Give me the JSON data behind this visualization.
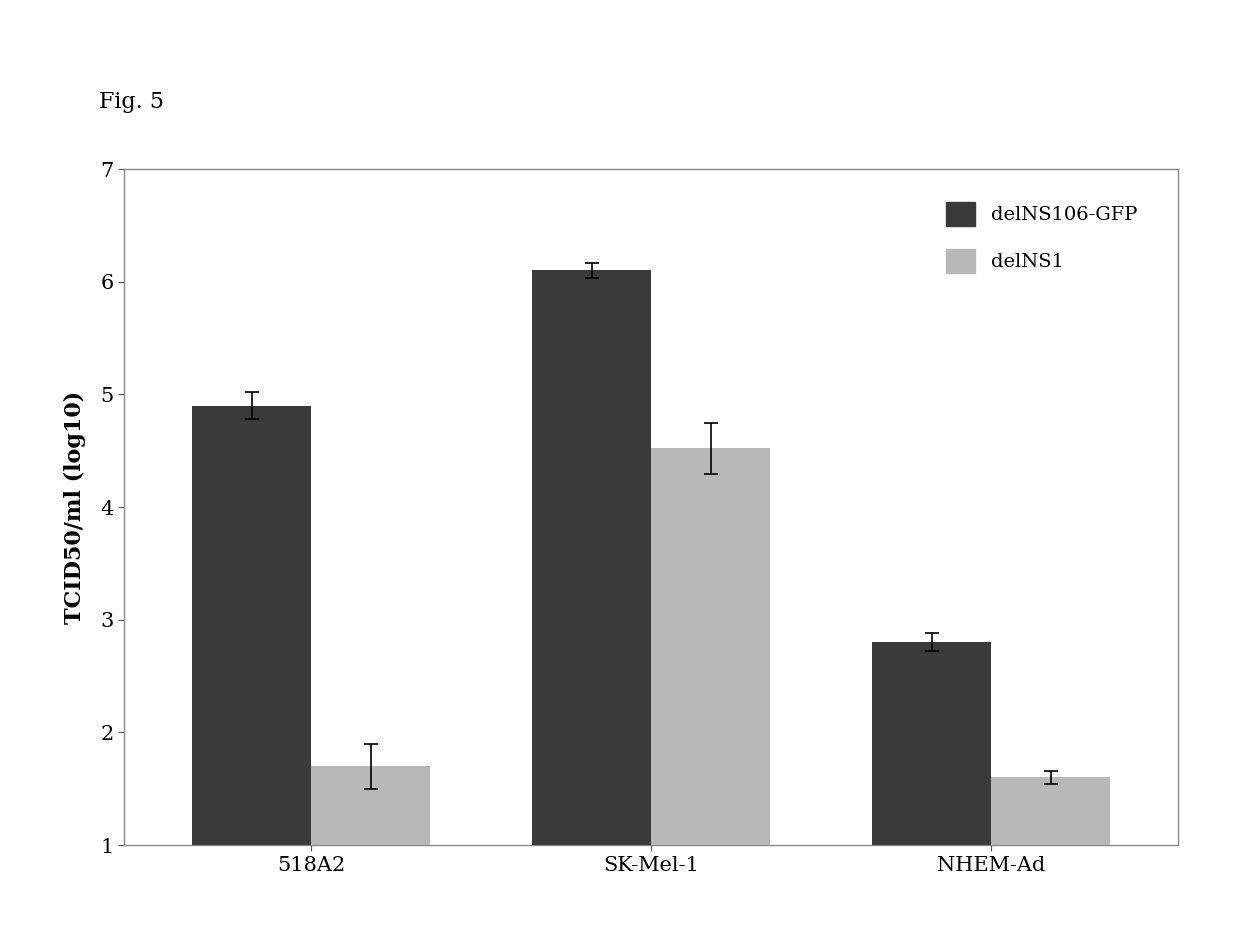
{
  "categories": [
    "518A2",
    "SK-Mel-1",
    "NHEM-Ad"
  ],
  "delNS106_GFP_values": [
    4.9,
    6.1,
    2.8
  ],
  "delNS1_values": [
    1.7,
    4.52,
    1.6
  ],
  "delNS106_GFP_errors": [
    0.12,
    0.07,
    0.08
  ],
  "delNS1_errors": [
    0.2,
    0.23,
    0.06
  ],
  "delNS106_GFP_color": "#3a3a3a",
  "delNS1_color": "#b8b8b8",
  "ylabel": "TCID50/ml (log10)",
  "ylim": [
    1,
    7
  ],
  "yticks": [
    1,
    2,
    3,
    4,
    5,
    6,
    7
  ],
  "legend_labels": [
    "delNS106-GFP",
    "delNS1"
  ],
  "bar_width": 0.35,
  "fig_annotation": "Fig. 5",
  "background_color": "#ffffff"
}
